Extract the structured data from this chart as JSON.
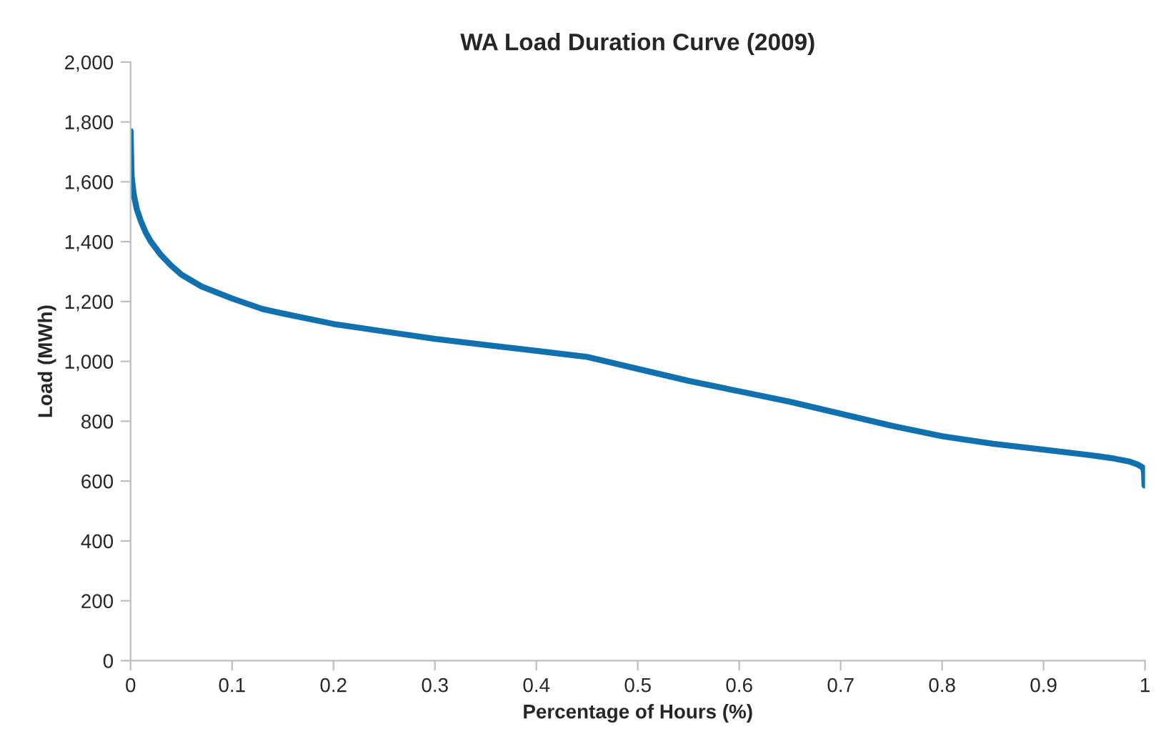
{
  "chart_data": {
    "type": "line",
    "title": "WA Load Duration Curve (2009)",
    "xlabel": "Percentage of Hours (%)",
    "ylabel": "Load (MWh)",
    "series": [
      {
        "color": "#1170ae",
        "x": [
          0,
          0.001,
          0.003,
          0.006,
          0.01,
          0.015,
          0.02,
          0.03,
          0.04,
          0.05,
          0.07,
          0.1,
          0.13,
          0.15,
          0.2,
          0.25,
          0.3,
          0.35,
          0.4,
          0.45,
          0.5,
          0.55,
          0.6,
          0.65,
          0.7,
          0.75,
          0.8,
          0.85,
          0.9,
          0.95,
          0.97,
          0.985,
          0.993,
          0.998,
          0.999,
          0.9995
        ],
        "values": [
          1770,
          1620,
          1560,
          1510,
          1470,
          1430,
          1400,
          1355,
          1320,
          1290,
          1250,
          1210,
          1175,
          1160,
          1125,
          1100,
          1075,
          1055,
          1035,
          1015,
          975,
          935,
          900,
          865,
          825,
          785,
          750,
          725,
          705,
          685,
          675,
          665,
          655,
          645,
          630,
          585
        ]
      }
    ],
    "xlim": [
      0,
      1
    ],
    "xticks": [
      0,
      0.1,
      0.2,
      0.3,
      0.4,
      0.5,
      0.6,
      0.7,
      0.8,
      0.9,
      1
    ],
    "ylim": [
      0,
      2000
    ],
    "yticks": [
      {
        "value": 0,
        "label": "0"
      },
      {
        "value": 200,
        "label": "200"
      },
      {
        "value": 400,
        "label": "400"
      },
      {
        "value": 600,
        "label": "600"
      },
      {
        "value": 800,
        "label": "800"
      },
      {
        "value": 1000,
        "label": "1,000"
      },
      {
        "value": 1200,
        "label": "1,200"
      },
      {
        "value": 1400,
        "label": "1,400"
      },
      {
        "value": 1600,
        "label": "1,600"
      },
      {
        "value": 1800,
        "label": "1,800"
      },
      {
        "value": 2000,
        "label": "2,000"
      }
    ],
    "grid": false,
    "legend": false,
    "marker": "none",
    "line_style": "solid"
  }
}
